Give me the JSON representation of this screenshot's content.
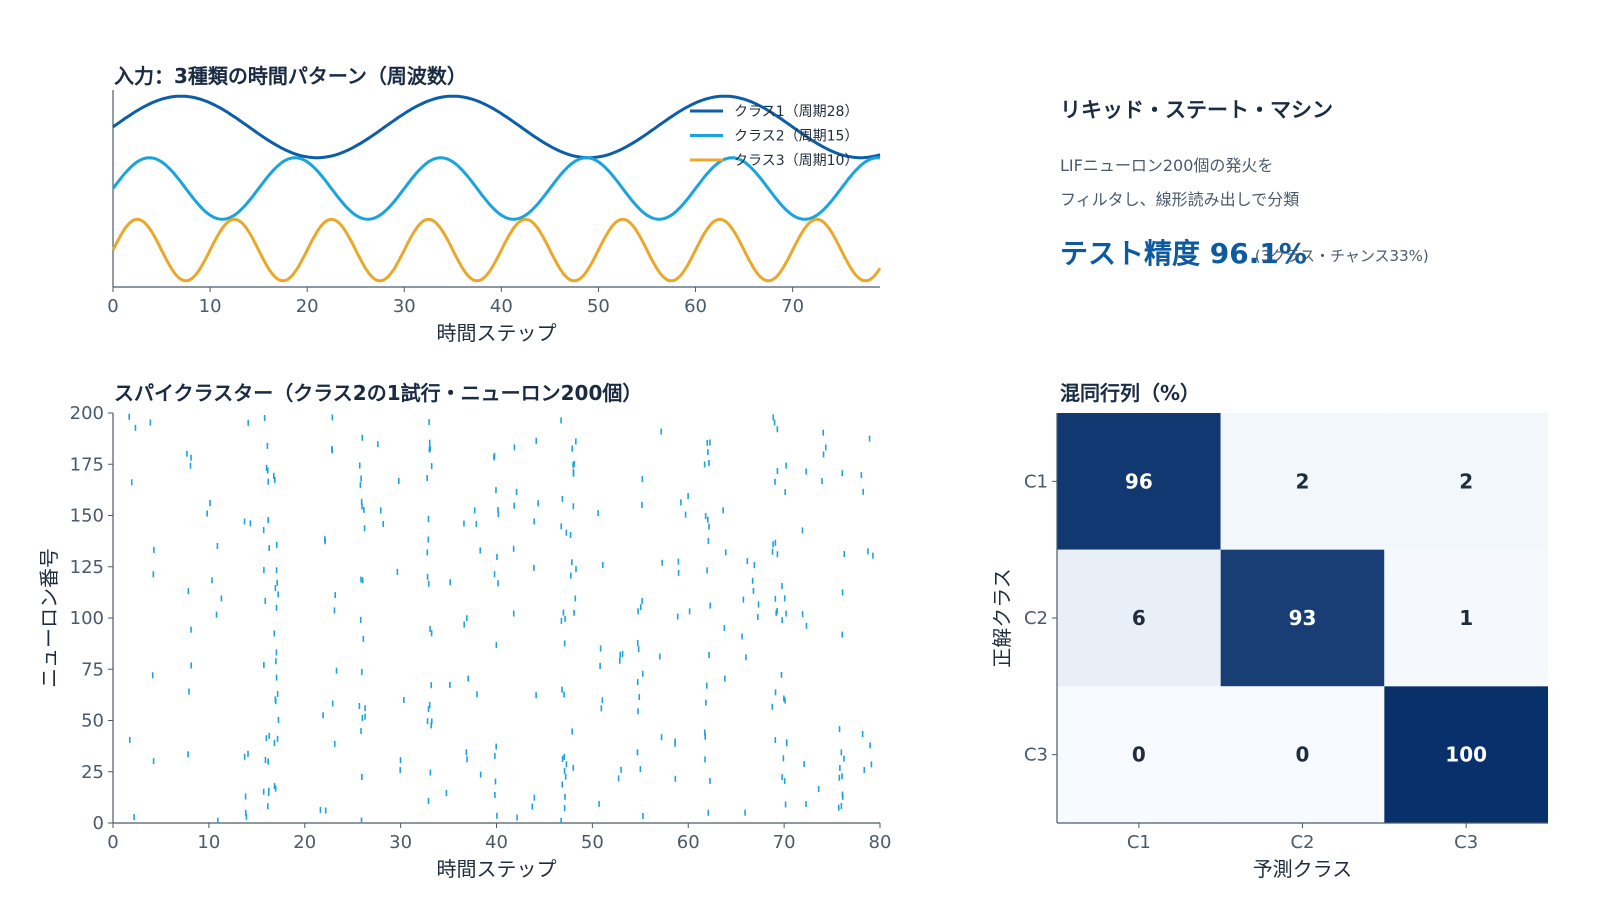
{
  "info": {
    "title": "リキッド・ステート・マシン",
    "line1": "LIFニューロン200個の発火を",
    "line2": "フィルタし、線形読み出しで分類",
    "accuracy": "テスト精度 96.1%",
    "chance": "(3クラス・チャンス33%)"
  },
  "colors": {
    "class1": "#0c5ea8",
    "class2": "#1aa3dc",
    "class3": "#eaa82a",
    "spike": "#1aa3dc",
    "axis": "#4b5a6b"
  },
  "chart_data": [
    {
      "type": "line",
      "title": "入力：3種類の時間パターン（周波数）",
      "xlabel": "時間ステップ",
      "ylabel": "",
      "xlim": [
        0,
        79
      ],
      "xticks": [
        0,
        10,
        20,
        30,
        40,
        50,
        60,
        70
      ],
      "legend_position": "top-right",
      "series": [
        {
          "name": "クラス1（周期28）",
          "period": 28,
          "color": "#0c5ea8",
          "offset": 2,
          "amplitude": 0.5
        },
        {
          "name": "クラス2（周期15）",
          "period": 15,
          "color": "#1aa3dc",
          "offset": 1,
          "amplitude": 0.5
        },
        {
          "name": "クラス3（周期10）",
          "period": 10,
          "color": "#eaa82a",
          "offset": 0,
          "amplitude": 0.5
        }
      ]
    },
    {
      "type": "scatter",
      "title": "スパイクラスター（クラス2の1試行・ニューロン200個）",
      "xlabel": "時間ステップ",
      "ylabel": "ニューロン番号",
      "xlim": [
        0,
        80
      ],
      "ylim": [
        0,
        200
      ],
      "xticks": [
        0,
        10,
        20,
        30,
        40,
        50,
        60,
        70,
        80
      ],
      "yticks": [
        0,
        25,
        50,
        75,
        100,
        125,
        150,
        175,
        200
      ],
      "color": "#1aa3dc",
      "burst_times": [
        16,
        17,
        26,
        33,
        40,
        47,
        48,
        55,
        62,
        69,
        70,
        76
      ],
      "sparse_times": [
        2,
        4,
        8,
        10,
        11,
        14,
        22,
        23,
        28,
        30,
        35,
        37,
        38,
        42,
        44,
        51,
        53,
        57,
        59,
        60,
        64,
        66,
        67,
        72,
        74,
        78,
        79
      ]
    },
    {
      "type": "heatmap",
      "title": "混同行列（%）",
      "xlabel": "予測クラス",
      "ylabel": "正解クラス",
      "x_categories": [
        "C1",
        "C2",
        "C3"
      ],
      "y_categories": [
        "C1",
        "C2",
        "C3"
      ],
      "values": [
        [
          96,
          2,
          2
        ],
        [
          6,
          93,
          1
        ],
        [
          0,
          0,
          100
        ]
      ],
      "colormap": "Blues"
    }
  ]
}
